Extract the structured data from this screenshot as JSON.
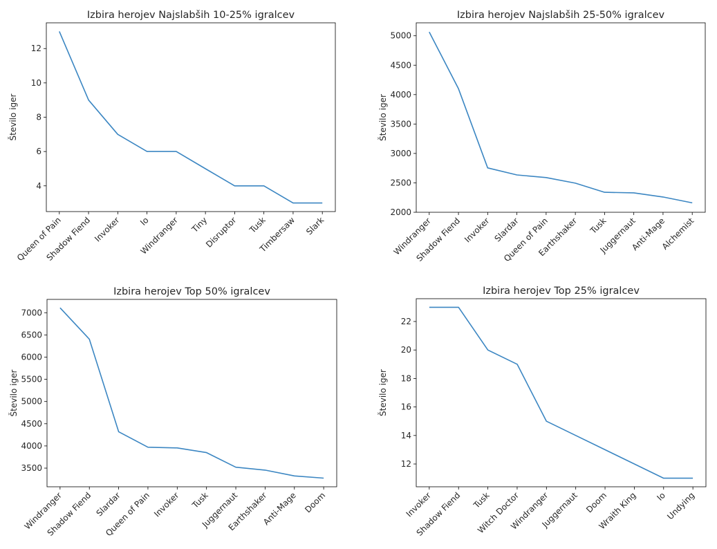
{
  "colors": {
    "line": "#3b86c2",
    "axis": "#000000",
    "text": "#262626",
    "background": "#ffffff"
  },
  "chart_data": [
    {
      "type": "line",
      "title": "Izbira herojev Najslabših 10-25% igralcev",
      "ylabel": "Število iger",
      "xlabel": "",
      "categories": [
        "Queen of Pain",
        "Shadow Fiend",
        "Invoker",
        "Io",
        "Windranger",
        "Tiny",
        "Disruptor",
        "Tusk",
        "Timbersaw",
        "Slark"
      ],
      "values": [
        13,
        9,
        7,
        6,
        6,
        5,
        4,
        4,
        3,
        3
      ],
      "ylim": [
        2.5,
        13.5
      ],
      "yticks": [
        4,
        6,
        8,
        10,
        12
      ],
      "grid": false
    },
    {
      "type": "line",
      "title": "Izbira herojev Najslabših 25-50% igralcev",
      "ylabel": "Število iger",
      "xlabel": "",
      "categories": [
        "Windranger",
        "Shadow Fiend",
        "Invoker",
        "Slardar",
        "Queen of Pain",
        "Earthshaker",
        "Tusk",
        "Juggernaut",
        "Anti-Mage",
        "Alchemist"
      ],
      "values": [
        5065,
        4100,
        2755,
        2635,
        2590,
        2495,
        2340,
        2330,
        2260,
        2160
      ],
      "ylim": [
        2000,
        5220
      ],
      "yticks": [
        2000,
        2500,
        3000,
        3500,
        4000,
        4500,
        5000
      ],
      "grid": false
    },
    {
      "type": "line",
      "title": "Izbira herojev Top 50% igralcev",
      "ylabel": "Število iger",
      "xlabel": "",
      "categories": [
        "Windranger",
        "Shadow Fiend",
        "Slardar",
        "Queen of Pain",
        "Invoker",
        "Tusk",
        "Juggernaut",
        "Earthshaker",
        "Anti-Mage",
        "Doom"
      ],
      "values": [
        7110,
        6405,
        4320,
        3970,
        3955,
        3850,
        3520,
        3455,
        3325,
        3275
      ],
      "ylim": [
        3080,
        7300
      ],
      "yticks": [
        3500,
        4000,
        4500,
        5000,
        5500,
        6000,
        6500,
        7000
      ],
      "grid": false
    },
    {
      "type": "line",
      "title": "Izbira herojev Top 25% igralcev",
      "ylabel": "Število iger",
      "xlabel": "",
      "categories": [
        "Invoker",
        "Shadow Fiend",
        "Tusk",
        "Witch Doctor",
        "Windranger",
        "Juggernaut",
        "Doom",
        "Wraith King",
        "Io",
        "Undying"
      ],
      "values": [
        23,
        23,
        20,
        19,
        15,
        14,
        13,
        12,
        11,
        11
      ],
      "ylim": [
        10.4,
        23.6
      ],
      "yticks": [
        12,
        14,
        16,
        18,
        20,
        22
      ],
      "grid": false
    }
  ]
}
